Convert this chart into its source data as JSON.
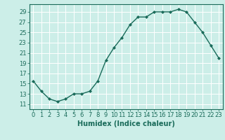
{
  "x": [
    0,
    1,
    2,
    3,
    4,
    5,
    6,
    7,
    8,
    9,
    10,
    11,
    12,
    13,
    14,
    15,
    16,
    17,
    18,
    19,
    20,
    21,
    22,
    23
  ],
  "y": [
    15.5,
    13.5,
    12.0,
    11.5,
    12.0,
    13.0,
    13.0,
    13.5,
    15.5,
    19.5,
    22.0,
    24.0,
    26.5,
    28.0,
    28.0,
    29.0,
    29.0,
    29.0,
    29.5,
    29.0,
    27.0,
    25.0,
    22.5,
    20.0
  ],
  "line_color": "#1a6b5a",
  "marker_color": "#1a6b5a",
  "bg_color": "#cceee8",
  "grid_color": "#ffffff",
  "xlabel": "Humidex (Indice chaleur)",
  "ylim": [
    10,
    30.5
  ],
  "yticks": [
    11,
    13,
    15,
    17,
    19,
    21,
    23,
    25,
    27,
    29
  ],
  "xticks": [
    0,
    1,
    2,
    3,
    4,
    5,
    6,
    7,
    8,
    9,
    10,
    11,
    12,
    13,
    14,
    15,
    16,
    17,
    18,
    19,
    20,
    21,
    22,
    23
  ],
  "xlim": [
    -0.5,
    23.5
  ],
  "tick_fontsize": 6,
  "label_fontsize": 7,
  "label_color": "#1a6b5a",
  "tick_color": "#1a6b5a",
  "spine_color": "#1a6b5a"
}
